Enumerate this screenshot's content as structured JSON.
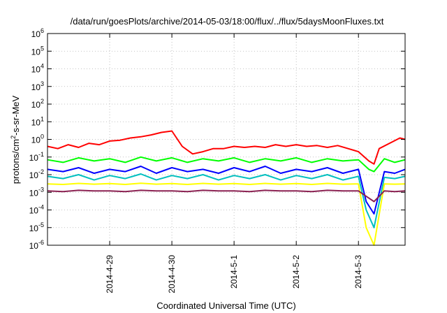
{
  "chart_data": {
    "type": "line",
    "title": "/data/run/goesPlots/archive/2014-05-03/18:00/flux/../flux/5daysMoonFluxes.txt",
    "xlabel": "Coordinated Universal Time (UTC)",
    "ylabel": {
      "base": "protons/cm",
      "sup": "2",
      "rest": "-s-sr-MeV"
    },
    "y_scale": "log",
    "ylim": [
      1e-06,
      1000000.0
    ],
    "xlim": [
      "2014-04-28 00:00",
      "2014-05-03 18:00"
    ],
    "grid": true,
    "legend": "none",
    "y_ticks": [
      {
        "value": 1e-06,
        "base": "10",
        "exp": "-6"
      },
      {
        "value": 1e-05,
        "base": "10",
        "exp": "-5"
      },
      {
        "value": 0.0001,
        "base": "10",
        "exp": "-4"
      },
      {
        "value": 0.001,
        "base": "10",
        "exp": "-3"
      },
      {
        "value": 0.01,
        "base": "10",
        "exp": "-2"
      },
      {
        "value": 0.1,
        "base": "10",
        "exp": "-1"
      },
      {
        "value": 1,
        "base": "10",
        "exp": "0"
      },
      {
        "value": 10.0,
        "base": "10",
        "exp": "1"
      },
      {
        "value": 100.0,
        "base": "10",
        "exp": "2"
      },
      {
        "value": 1000.0,
        "base": "10",
        "exp": "3"
      },
      {
        "value": 10000.0,
        "base": "10",
        "exp": "4"
      },
      {
        "value": 100000.0,
        "base": "10",
        "exp": "5"
      },
      {
        "value": 1000000.0,
        "base": "10",
        "exp": "6"
      }
    ],
    "x_ticks": [
      {
        "value": "2014-04-29 00:00",
        "label": "2014-4-29"
      },
      {
        "value": "2014-04-30 00:00",
        "label": "2014-4-30"
      },
      {
        "value": "2014-05-01 00:00",
        "label": "2014-5-1"
      },
      {
        "value": "2014-05-02 00:00",
        "label": "2014-5-2"
      },
      {
        "value": "2014-05-03 00:00",
        "label": "2014-5-3"
      }
    ],
    "series": [
      {
        "color": "#ff0000",
        "x": [
          "2014-04-28 00:00",
          "2014-04-28 04:00",
          "2014-04-28 08:00",
          "2014-04-28 12:00",
          "2014-04-28 16:00",
          "2014-04-28 20:00",
          "2014-04-29 00:00",
          "2014-04-29 04:00",
          "2014-04-29 08:00",
          "2014-04-29 12:00",
          "2014-04-29 16:00",
          "2014-04-29 20:00",
          "2014-04-30 00:00",
          "2014-04-30 04:00",
          "2014-04-30 08:00",
          "2014-04-30 12:00",
          "2014-04-30 16:00",
          "2014-04-30 20:00",
          "2014-05-01 00:00",
          "2014-05-01 04:00",
          "2014-05-01 08:00",
          "2014-05-01 12:00",
          "2014-05-01 16:00",
          "2014-05-01 20:00",
          "2014-05-02 00:00",
          "2014-05-02 04:00",
          "2014-05-02 08:00",
          "2014-05-02 12:00",
          "2014-05-02 16:00",
          "2014-05-02 20:00",
          "2014-05-03 00:00",
          "2014-05-03 04:00",
          "2014-05-03 06:00",
          "2014-05-03 08:00",
          "2014-05-03 12:00",
          "2014-05-03 16:00",
          "2014-05-03 18:00"
        ],
        "y": [
          0.4,
          0.3,
          0.5,
          0.35,
          0.6,
          0.5,
          0.8,
          0.9,
          1.2,
          1.4,
          1.8,
          2.5,
          3.0,
          0.4,
          0.15,
          0.2,
          0.3,
          0.3,
          0.4,
          0.35,
          0.4,
          0.35,
          0.5,
          0.4,
          0.5,
          0.4,
          0.45,
          0.35,
          0.45,
          0.3,
          0.2,
          0.06,
          0.04,
          0.3,
          0.6,
          1.2,
          1.0
        ]
      },
      {
        "color": "#00ff00",
        "x": [
          "2014-04-28 00:00",
          "2014-04-28 06:00",
          "2014-04-28 12:00",
          "2014-04-28 18:00",
          "2014-04-29 00:00",
          "2014-04-29 06:00",
          "2014-04-29 12:00",
          "2014-04-29 18:00",
          "2014-04-30 00:00",
          "2014-04-30 06:00",
          "2014-04-30 12:00",
          "2014-04-30 18:00",
          "2014-05-01 00:00",
          "2014-05-01 06:00",
          "2014-05-01 12:00",
          "2014-05-01 18:00",
          "2014-05-02 00:00",
          "2014-05-02 06:00",
          "2014-05-02 12:00",
          "2014-05-02 18:00",
          "2014-05-03 00:00",
          "2014-05-03 04:00",
          "2014-05-03 06:00",
          "2014-05-03 10:00",
          "2014-05-03 14:00",
          "2014-05-03 18:00"
        ],
        "y": [
          0.07,
          0.05,
          0.09,
          0.06,
          0.08,
          0.05,
          0.1,
          0.06,
          0.09,
          0.05,
          0.08,
          0.06,
          0.09,
          0.05,
          0.08,
          0.06,
          0.09,
          0.05,
          0.08,
          0.06,
          0.07,
          0.02,
          0.015,
          0.08,
          0.05,
          0.07
        ]
      },
      {
        "color": "#0000ff",
        "x": [
          "2014-04-28 00:00",
          "2014-04-28 06:00",
          "2014-04-28 12:00",
          "2014-04-28 18:00",
          "2014-04-29 00:00",
          "2014-04-29 06:00",
          "2014-04-29 12:00",
          "2014-04-29 18:00",
          "2014-04-30 00:00",
          "2014-04-30 06:00",
          "2014-04-30 12:00",
          "2014-04-30 18:00",
          "2014-05-01 00:00",
          "2014-05-01 06:00",
          "2014-05-01 12:00",
          "2014-05-01 18:00",
          "2014-05-02 00:00",
          "2014-05-02 06:00",
          "2014-05-02 12:00",
          "2014-05-02 18:00",
          "2014-05-03 00:00",
          "2014-05-03 03:00",
          "2014-05-03 06:00",
          "2014-05-03 10:00",
          "2014-05-03 14:00",
          "2014-05-03 18:00"
        ],
        "y": [
          0.02,
          0.015,
          0.025,
          0.012,
          0.02,
          0.015,
          0.03,
          0.012,
          0.025,
          0.015,
          0.02,
          0.012,
          0.025,
          0.015,
          0.03,
          0.012,
          0.02,
          0.015,
          0.025,
          0.012,
          0.02,
          0.0003,
          6e-05,
          0.015,
          0.012,
          0.02
        ]
      },
      {
        "color": "#00bfbf",
        "x": [
          "2014-04-28 00:00",
          "2014-04-28 06:00",
          "2014-04-28 12:00",
          "2014-04-28 18:00",
          "2014-04-29 00:00",
          "2014-04-29 06:00",
          "2014-04-29 12:00",
          "2014-04-29 18:00",
          "2014-04-30 00:00",
          "2014-04-30 06:00",
          "2014-04-30 12:00",
          "2014-04-30 18:00",
          "2014-05-01 00:00",
          "2014-05-01 06:00",
          "2014-05-01 12:00",
          "2014-05-01 18:00",
          "2014-05-02 00:00",
          "2014-05-02 06:00",
          "2014-05-02 12:00",
          "2014-05-02 18:00",
          "2014-05-03 00:00",
          "2014-05-03 03:00",
          "2014-05-03 06:00",
          "2014-05-03 10:00",
          "2014-05-03 14:00",
          "2014-05-03 18:00"
        ],
        "y": [
          0.008,
          0.006,
          0.01,
          0.005,
          0.009,
          0.006,
          0.011,
          0.005,
          0.009,
          0.006,
          0.01,
          0.005,
          0.009,
          0.006,
          0.01,
          0.005,
          0.009,
          0.006,
          0.01,
          0.005,
          0.008,
          0.0001,
          1e-05,
          0.007,
          0.006,
          0.008
        ]
      },
      {
        "color": "#ffff00",
        "x": [
          "2014-04-28 00:00",
          "2014-04-28 06:00",
          "2014-04-28 12:00",
          "2014-04-28 18:00",
          "2014-04-29 00:00",
          "2014-04-29 06:00",
          "2014-04-29 12:00",
          "2014-04-29 18:00",
          "2014-04-30 00:00",
          "2014-04-30 06:00",
          "2014-04-30 12:00",
          "2014-04-30 18:00",
          "2014-05-01 00:00",
          "2014-05-01 06:00",
          "2014-05-01 12:00",
          "2014-05-01 18:00",
          "2014-05-02 00:00",
          "2014-05-02 06:00",
          "2014-05-02 12:00",
          "2014-05-02 18:00",
          "2014-05-03 00:00",
          "2014-05-03 03:00",
          "2014-05-03 06:00",
          "2014-05-03 10:00",
          "2014-05-03 14:00",
          "2014-05-03 18:00"
        ],
        "y": [
          0.003,
          0.0028,
          0.0032,
          0.0029,
          0.0031,
          0.0028,
          0.0033,
          0.0029,
          0.0031,
          0.0028,
          0.0032,
          0.0029,
          0.0031,
          0.0028,
          0.0032,
          0.0029,
          0.0031,
          0.0028,
          0.0032,
          0.0029,
          0.003,
          1e-05,
          1e-06,
          0.003,
          0.0029,
          0.003
        ]
      },
      {
        "color": "#8b2252",
        "x": [
          "2014-04-28 00:00",
          "2014-04-28 06:00",
          "2014-04-28 12:00",
          "2014-04-28 18:00",
          "2014-04-29 00:00",
          "2014-04-29 06:00",
          "2014-04-29 12:00",
          "2014-04-29 18:00",
          "2014-04-30 00:00",
          "2014-04-30 06:00",
          "2014-04-30 12:00",
          "2014-04-30 18:00",
          "2014-05-01 00:00",
          "2014-05-01 06:00",
          "2014-05-01 12:00",
          "2014-05-01 18:00",
          "2014-05-02 00:00",
          "2014-05-02 06:00",
          "2014-05-02 12:00",
          "2014-05-02 18:00",
          "2014-05-03 00:00",
          "2014-05-03 03:00",
          "2014-05-03 06:00",
          "2014-05-03 10:00",
          "2014-05-03 14:00",
          "2014-05-03 18:00"
        ],
        "y": [
          0.0012,
          0.0011,
          0.0013,
          0.0012,
          0.0012,
          0.0011,
          0.0013,
          0.0012,
          0.0012,
          0.0011,
          0.0013,
          0.0012,
          0.0012,
          0.0011,
          0.0013,
          0.0012,
          0.0012,
          0.0011,
          0.0013,
          0.0012,
          0.0012,
          0.0006,
          0.0003,
          0.0012,
          0.0011,
          0.0012
        ]
      }
    ]
  }
}
